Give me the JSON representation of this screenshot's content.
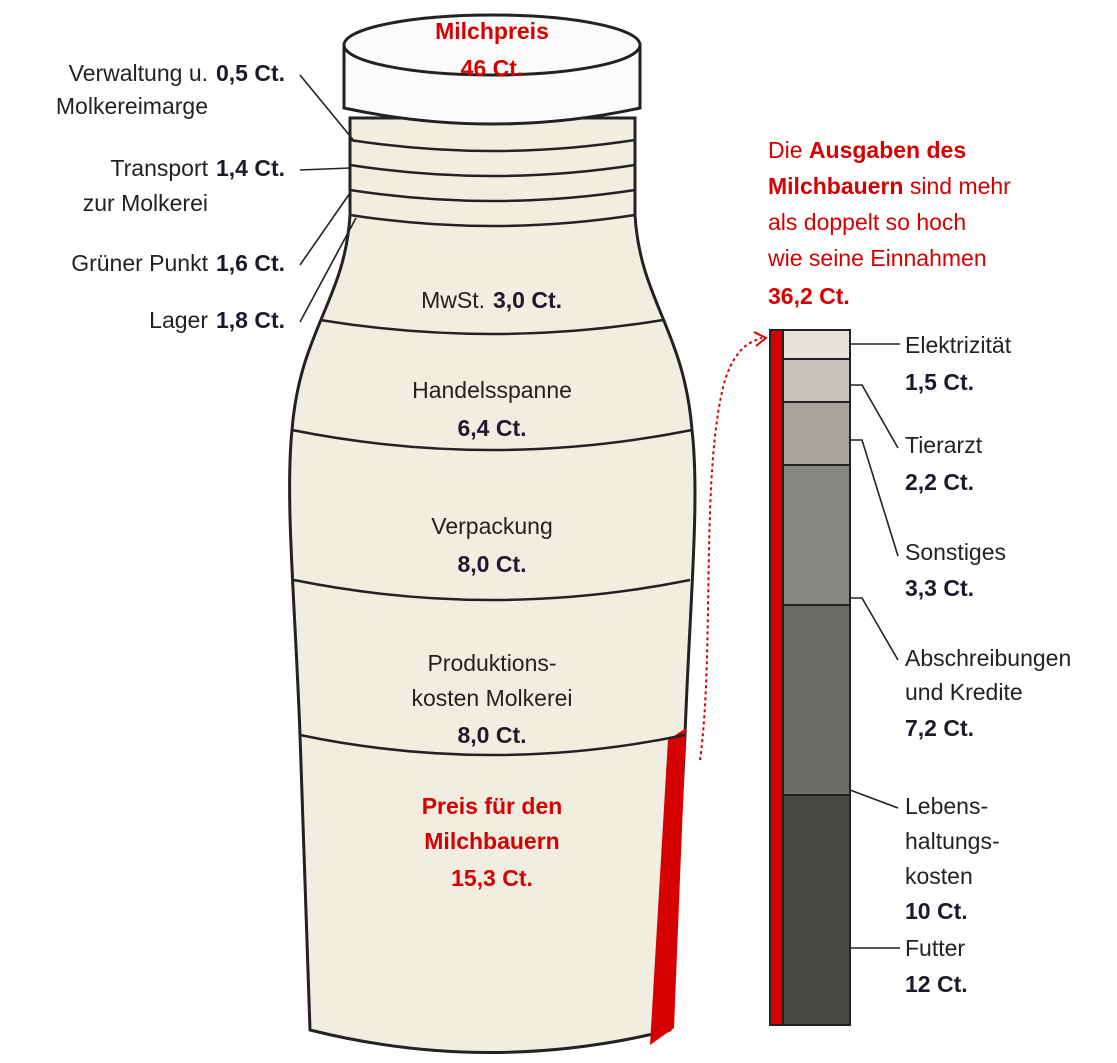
{
  "bottle": {
    "title": "Milchpreis",
    "total": "46 Ct.",
    "side_items": [
      {
        "lines": [
          "Verwaltung u.",
          "Molkereimarge"
        ],
        "amount": "0,5 Ct."
      },
      {
        "lines": [
          "Transport",
          "zur Molkerei"
        ],
        "amount": "1,4 Ct."
      },
      {
        "lines": [
          "Grüner Punkt"
        ],
        "amount": "1,6 Ct."
      },
      {
        "lines": [
          "Lager"
        ],
        "amount": "1,8 Ct."
      }
    ],
    "layers": [
      {
        "lines": [
          "MwSt."
        ],
        "amount": "3,0 Ct."
      },
      {
        "lines": [
          "Handelsspanne"
        ],
        "amount": "6,4 Ct."
      },
      {
        "lines": [
          "Verpackung"
        ],
        "amount": "8,0 Ct."
      },
      {
        "lines": [
          "Produktions-",
          "kosten Molkerei"
        ],
        "amount": "8,0 Ct."
      },
      {
        "lines": [
          "Preis für den",
          "Milchbauern"
        ],
        "amount": "15,3 Ct."
      }
    ]
  },
  "expenses": {
    "intro": [
      [
        {
          "text": "Die "
        },
        {
          "text": "Ausgaben des",
          "strong": true
        }
      ],
      [
        {
          "text": "Milchbauern",
          "strong": true
        },
        {
          "text": " sind mehr"
        }
      ],
      [
        {
          "text": "als doppelt so hoch"
        }
      ],
      [
        {
          "text": "wie seine Einnahmen"
        }
      ]
    ],
    "total": "36,2 Ct.",
    "items": [
      {
        "lines": [
          "Elektrizität"
        ],
        "amount": "1,5 Ct."
      },
      {
        "lines": [
          "Tierarzt"
        ],
        "amount": "2,2 Ct."
      },
      {
        "lines": [
          "Sonstiges"
        ],
        "amount": "3,3 Ct."
      },
      {
        "lines": [
          "Abschreibungen",
          "und Kredite"
        ],
        "amount": "7,2 Ct."
      },
      {
        "lines": [
          "Lebens-",
          "haltungs-",
          "kosten"
        ],
        "amount": "10 Ct."
      },
      {
        "lines": [
          "Futter"
        ],
        "amount": "12 Ct."
      }
    ]
  }
}
